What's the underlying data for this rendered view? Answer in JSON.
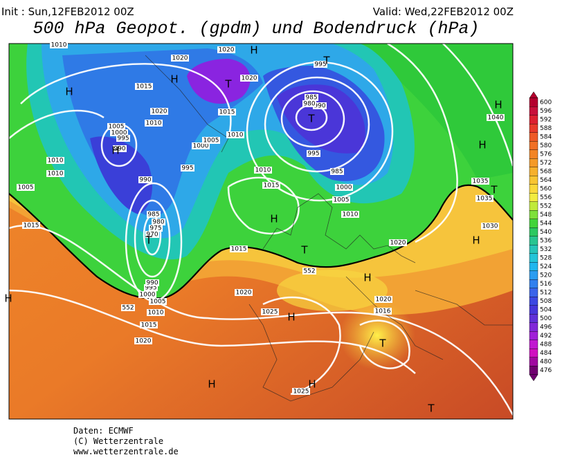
{
  "header": {
    "init": "Init : Sun,12FEB2012 00Z",
    "valid": "Valid: Wed,22FEB2012 00Z",
    "title": "500 hPa Geopot. (gpdm) und Bodendruck (hPa)"
  },
  "colorbar": {
    "levels": [
      600,
      596,
      592,
      588,
      584,
      580,
      576,
      572,
      568,
      564,
      560,
      556,
      552,
      548,
      544,
      540,
      536,
      532,
      528,
      524,
      520,
      516,
      512,
      508,
      504,
      500,
      496,
      492,
      488,
      484,
      480,
      476
    ]
  },
  "map": {
    "pressure_labels": [
      "1010",
      "1020",
      "1020",
      "1015",
      "1020",
      "1015",
      "1010",
      "1020",
      "1005",
      "1000",
      "995",
      "990",
      "1010",
      "1010",
      "1005",
      "995",
      "990",
      "1000",
      "1005",
      "1010",
      "1010",
      "1015",
      "985",
      "980",
      "975",
      "970",
      "1015",
      "1015",
      "995",
      "990",
      "985",
      "980",
      "995",
      "985",
      "1000",
      "1005",
      "1010",
      "1020",
      "1035",
      "1035",
      "1030",
      "1040",
      "1020",
      "1016",
      "1025",
      "1020",
      "1010",
      "1005",
      "1000",
      "995",
      "990",
      "1015",
      "1020",
      "1025",
      "552",
      "552"
    ],
    "centers": [
      "H",
      "T",
      "H",
      "T",
      "H",
      "T",
      "H",
      "H",
      "T",
      "H",
      "T",
      "H",
      "T",
      "H",
      "H",
      "H",
      "H",
      "T",
      "H",
      "H",
      "T"
    ]
  },
  "footer": {
    "lines": [
      "Daten: ECMWF",
      "(C) Wetterzentrale",
      "www.wetterzentrale.de"
    ]
  }
}
